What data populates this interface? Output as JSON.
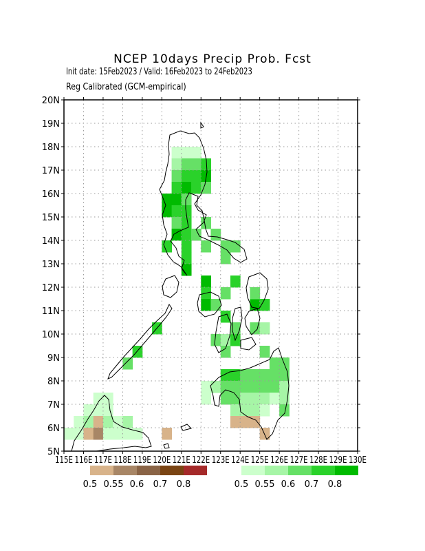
{
  "header": {
    "title": "NCEP 10days Precip Prob. Fcst",
    "subtitle": "Init date: 15Feb2023 / Valid: 16Feb2023 to 24Feb2023",
    "subtitle2": "Reg Calibrated (GCM-empirical)"
  },
  "map": {
    "lon_range": [
      115,
      130
    ],
    "lat_range": [
      5,
      20
    ],
    "lat_labels": [
      "5N",
      "6N",
      "7N",
      "8N",
      "9N",
      "10N",
      "11N",
      "12N",
      "13N",
      "14N",
      "15N",
      "16N",
      "17N",
      "18N",
      "19N",
      "20N"
    ],
    "lon_labels": [
      "115E",
      "116E",
      "117E",
      "118E",
      "119E",
      "120E",
      "121E",
      "122E",
      "123E",
      "124E",
      "125E",
      "126E",
      "127E",
      "128E",
      "129E",
      "130E"
    ]
  },
  "legend_dry": {
    "colors": [
      "#d8b38a",
      "#a88666",
      "#8a6446",
      "#7a4413",
      "#a52a2a"
    ],
    "labels": [
      "0.5",
      "0.55",
      "0.6",
      "0.7",
      "0.8"
    ]
  },
  "legend_wet": {
    "colors": [
      "#ccffcc",
      "#a6f5a6",
      "#66e066",
      "#2ad22a",
      "#00bb00"
    ],
    "labels": [
      "0.5",
      "0.55",
      "0.6",
      "0.7",
      "0.8"
    ]
  }
}
